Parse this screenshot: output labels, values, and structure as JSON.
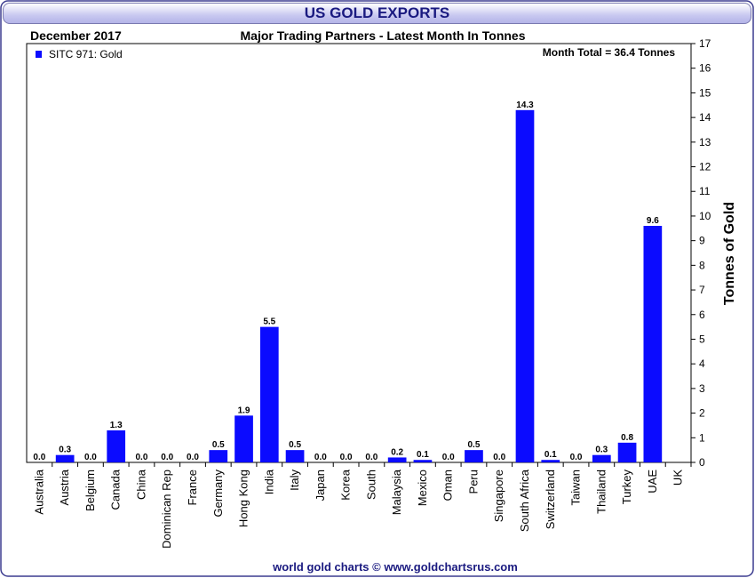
{
  "page": {
    "title": "US GOLD EXPORTS",
    "footer": "world gold charts © www.goldchartsrus.com"
  },
  "colors": {
    "bar": "#0b0bff",
    "title_text": "#1a1a80",
    "footer_text": "#1a1a80",
    "frame_border": "#3b3b8f"
  },
  "chart_data": {
    "type": "bar",
    "title": "Major Trading Partners - Latest Month In Tonnes",
    "period_label": "December 2017",
    "annotation": "Month Total = 36.4 Tonnes",
    "legend": [
      {
        "name": "SITC 971: Gold",
        "color": "#0b0bff"
      }
    ],
    "legend_position": "top-left",
    "xlabel": "",
    "ylabel": "Tonnes of Gold",
    "ylim": [
      0,
      17
    ],
    "yticks": [
      0,
      1,
      2,
      3,
      4,
      5,
      6,
      7,
      8,
      9,
      10,
      11,
      12,
      13,
      14,
      15,
      16,
      17
    ],
    "y_axis_side": "right",
    "categories": [
      "Australia",
      "Austria",
      "Belgium",
      "Canada",
      "China",
      "Dominican Rep",
      "France",
      "Germany",
      "Hong Kong",
      "India",
      "Italy",
      "Japan",
      "Korea",
      "South",
      "Malaysia",
      "Mexico",
      "Oman",
      "Peru",
      "Singapore",
      "South Africa",
      "Switzerland",
      "Taiwan",
      "Thailand",
      "Turkey",
      "UAE",
      "UK"
    ],
    "values": [
      0.0,
      0.3,
      0.0,
      1.3,
      0.0,
      0.0,
      0.0,
      0.5,
      1.9,
      5.5,
      0.5,
      0.0,
      0.0,
      0.0,
      0.2,
      0.1,
      0.0,
      0.5,
      0.0,
      14.3,
      0.1,
      0.0,
      0.3,
      0.8,
      9.6,
      null
    ],
    "value_labels": [
      "0.0",
      "0.3",
      "0.0",
      "1.3",
      "0.0",
      "0.0",
      "0.0",
      "0.5",
      "1.9",
      "5.5",
      "0.5",
      "0.0",
      "0.0",
      "0.0",
      "0.2",
      "0.1",
      "0.0",
      "0.5",
      "0.0",
      "14.3",
      "0.1",
      "0.0",
      "0.3",
      "0.8",
      "9.6",
      ""
    ]
  }
}
